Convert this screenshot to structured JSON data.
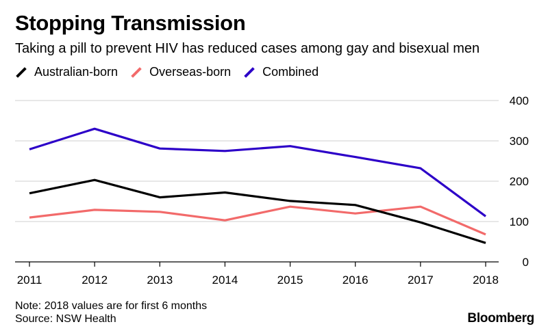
{
  "header": {
    "title": "Stopping Transmission",
    "subtitle": "Taking a pill to prevent HIV has reduced cases among gay and bisexual men"
  },
  "footer": {
    "note": "Note: 2018 values are for first 6 months",
    "source": "Source: NSW Health",
    "brand": "Bloomberg"
  },
  "chart_data": {
    "type": "line",
    "title": "Stopping Transmission",
    "subtitle": "Taking a pill to prevent HIV has reduced cases among gay and bisexual men",
    "xlabel": "",
    "ylabel": "",
    "x": [
      "2011",
      "2012",
      "2013",
      "2014",
      "2015",
      "2016",
      "2017",
      "2018"
    ],
    "ylim": [
      0,
      400
    ],
    "yticks": [
      "0",
      "100",
      "200",
      "300",
      "400"
    ],
    "grid": true,
    "legend_position": "top-left",
    "series": [
      {
        "name": "Australian-born",
        "color": "#000000",
        "values": [
          170,
          203,
          160,
          172,
          151,
          141,
          98,
          47
        ]
      },
      {
        "name": "Overseas-born",
        "color": "#f26a6a",
        "values": [
          110,
          129,
          124,
          103,
          137,
          120,
          137,
          68
        ]
      },
      {
        "name": "Combined",
        "color": "#2c00c8",
        "values": [
          279,
          330,
          281,
          275,
          287,
          260,
          232,
          113
        ]
      }
    ]
  }
}
